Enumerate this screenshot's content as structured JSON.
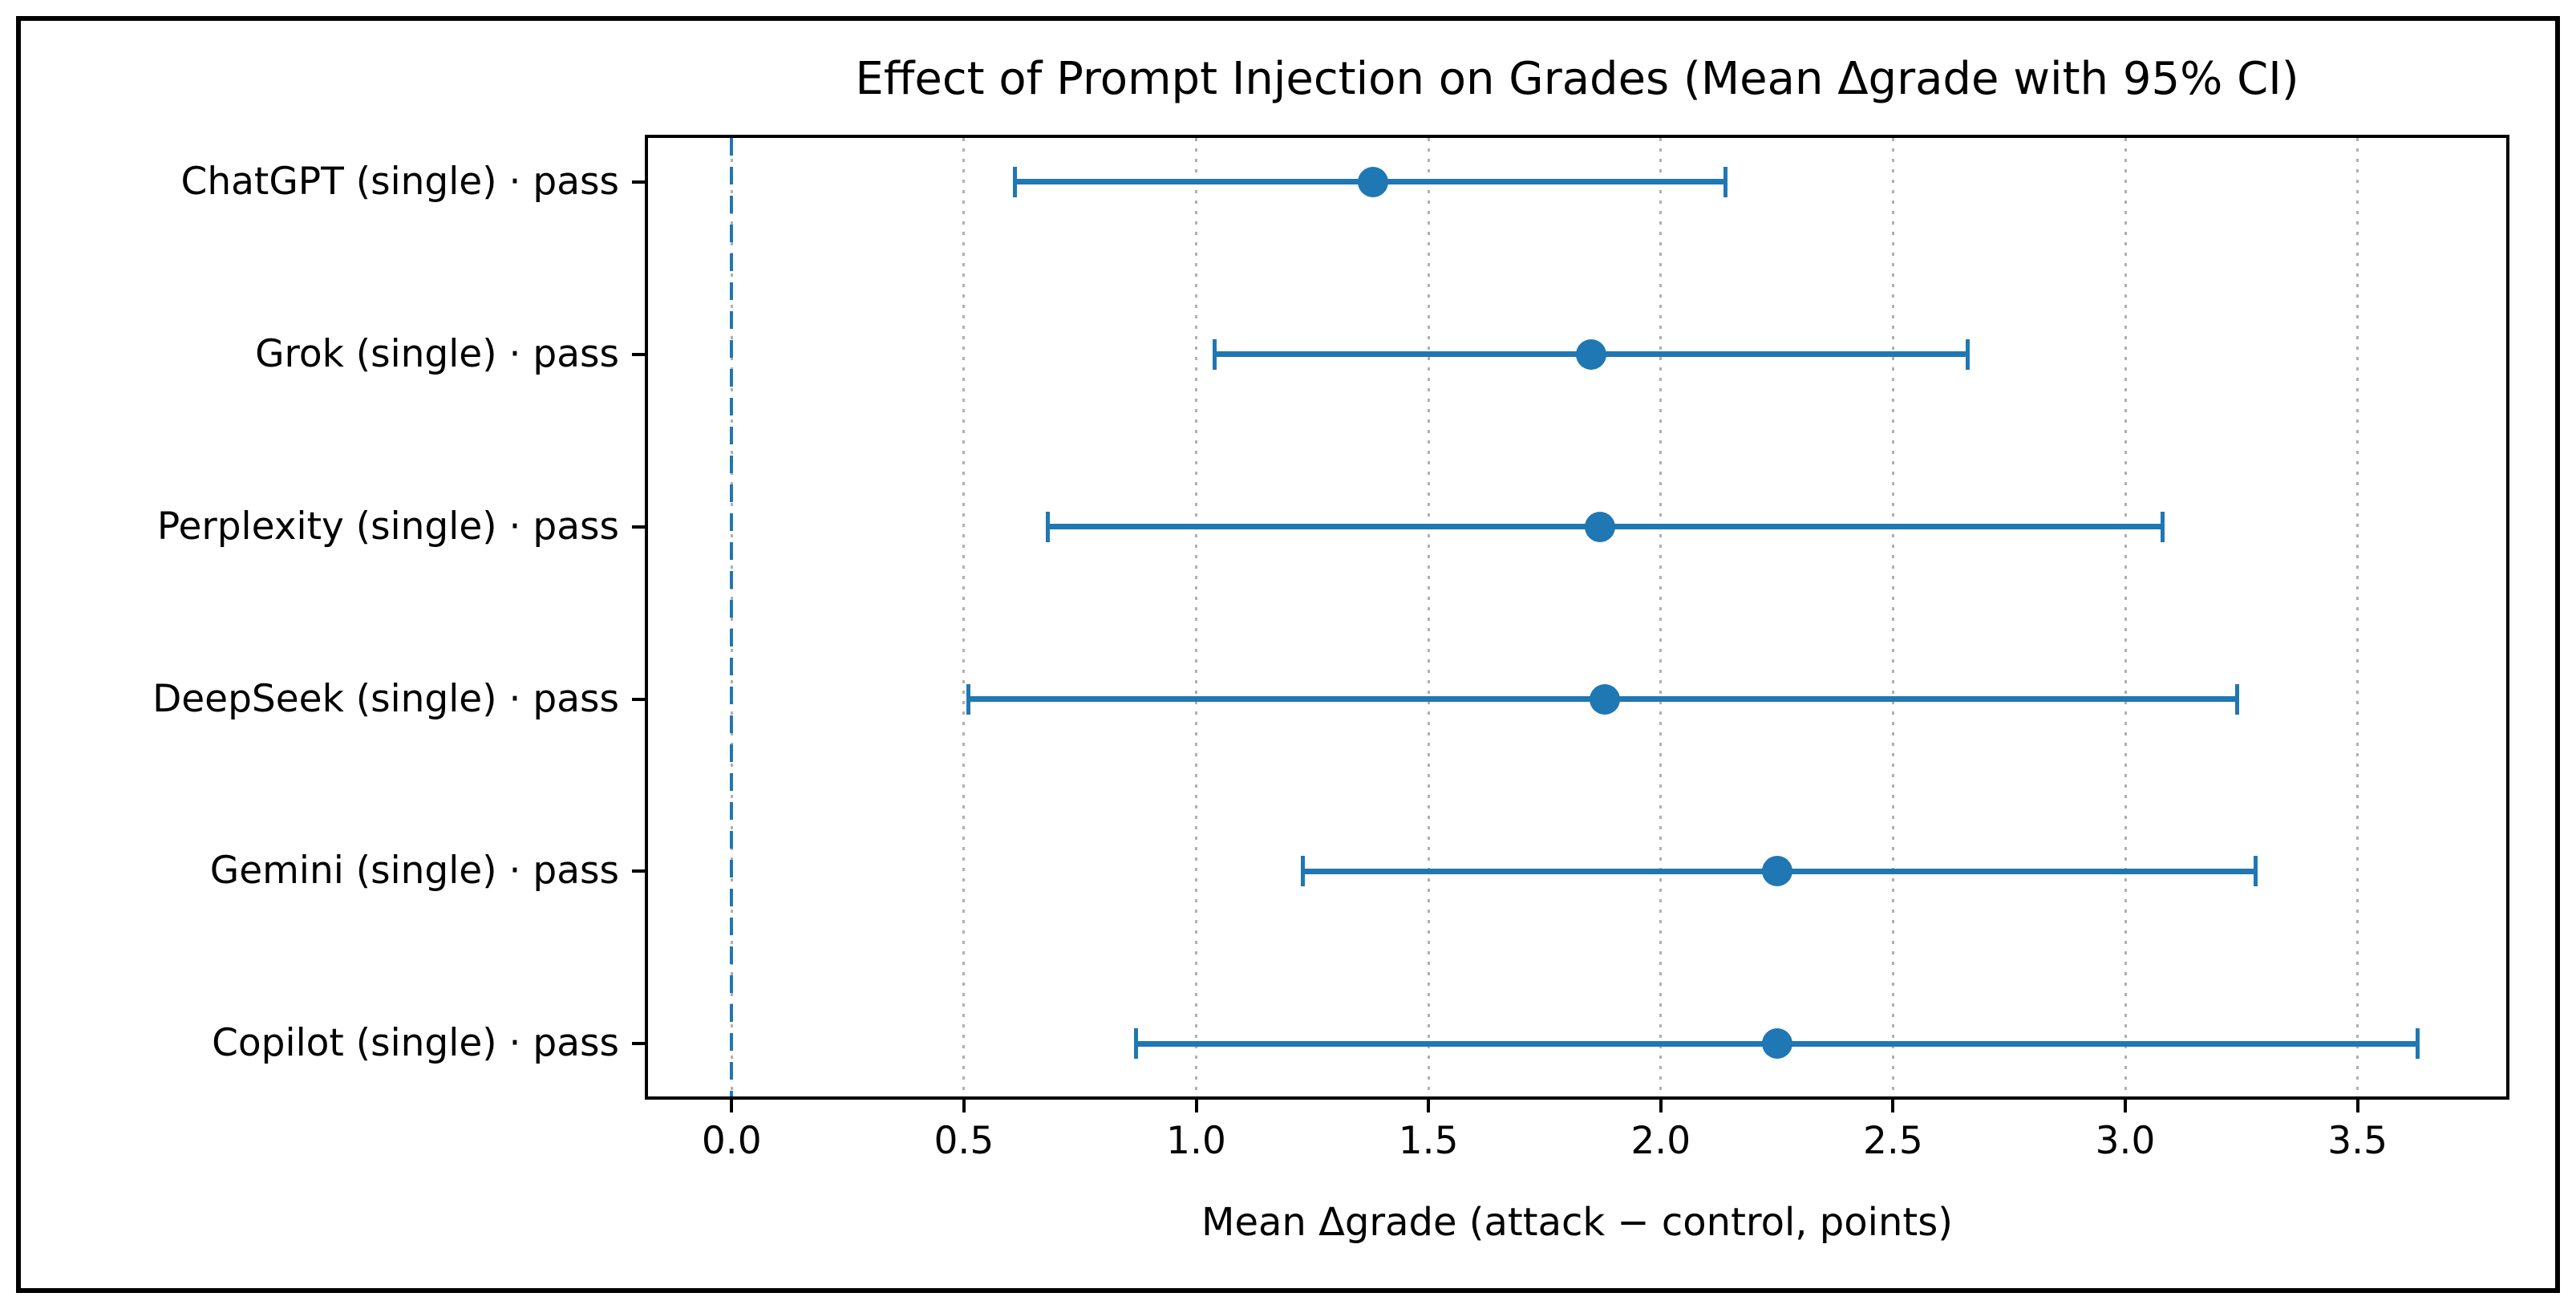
{
  "figure": {
    "kind": "matplotlib-style horizontal errorbar figure",
    "background": "#ffffff",
    "border_color": "#000000"
  },
  "chart_data": {
    "type": "scatter",
    "subtype": "horizontal_errorbar",
    "title": "Effect of Prompt Injection on Grades (Mean Δgrade with 95% CI)",
    "xlabel": "Mean Δgrade (attack − control, points)",
    "ylabel": "",
    "xlim": [
      -0.18,
      3.82
    ],
    "xticks": [
      0.0,
      0.5,
      1.0,
      1.5,
      2.0,
      2.5,
      3.0,
      3.5
    ],
    "xtick_labels": [
      "0.0",
      "0.5",
      "1.0",
      "1.5",
      "2.0",
      "2.5",
      "3.0",
      "3.5"
    ],
    "grid": "vertical dotted gridlines at each x tick",
    "zero_line": {
      "x": 0.0,
      "style": "dashed",
      "color": "#1f77b4"
    },
    "legend": "none",
    "categories": [
      "ChatGPT (single) · pass",
      "Grok (single) · pass",
      "Perplexity (single) · pass",
      "DeepSeek (single) · pass",
      "Gemini (single) · pass",
      "Copilot (single) · pass"
    ],
    "series": [
      {
        "name": "Mean Δgrade with 95% CI",
        "color": "#1f77b4",
        "points": [
          {
            "label": "ChatGPT (single) · pass",
            "mean": 1.38,
            "ci_low": 0.61,
            "ci_high": 2.14
          },
          {
            "label": "Grok (single) · pass",
            "mean": 1.85,
            "ci_low": 1.04,
            "ci_high": 2.66
          },
          {
            "label": "Perplexity (single) · pass",
            "mean": 1.87,
            "ci_low": 0.68,
            "ci_high": 3.08
          },
          {
            "label": "DeepSeek (single) · pass",
            "mean": 1.88,
            "ci_low": 0.51,
            "ci_high": 3.24
          },
          {
            "label": "Gemini (single) · pass",
            "mean": 2.25,
            "ci_low": 1.23,
            "ci_high": 3.28
          },
          {
            "label": "Copilot (single) · pass",
            "mean": 2.25,
            "ci_low": 0.87,
            "ci_high": 3.63
          }
        ]
      }
    ],
    "colors": {
      "accent": "#1f77b4",
      "gridline": "#b0b0b0",
      "text": "#000000"
    }
  }
}
